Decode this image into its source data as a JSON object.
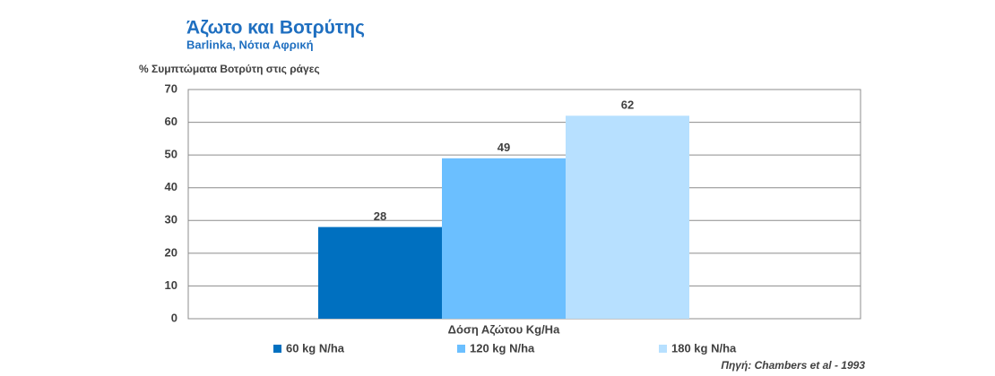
{
  "chart_data": {
    "type": "bar",
    "title": "Άζωτο και Βοτρύτης",
    "subtitle": "Barlinka, Νότια Αφρική",
    "ylabel": "% Συμπτώματα Βοτρύτη στις ράγες",
    "categories": [
      "Δόση Αζώτου Kg/Ha"
    ],
    "series": [
      {
        "name": "60 kg N/ha",
        "color": "#0070c0",
        "values": [
          28
        ]
      },
      {
        "name": "120 kg N/ha",
        "color": "#6bbfff",
        "values": [
          49
        ]
      },
      {
        "name": "180 kg N/ha",
        "color": "#b7e0ff",
        "values": [
          62
        ]
      }
    ],
    "ylim": [
      0,
      70
    ],
    "yticks": [
      0,
      10,
      20,
      30,
      40,
      50,
      60,
      70
    ],
    "grid": true,
    "legend": "bottom",
    "source": "Πηγή: Chambers et al - 1993"
  }
}
